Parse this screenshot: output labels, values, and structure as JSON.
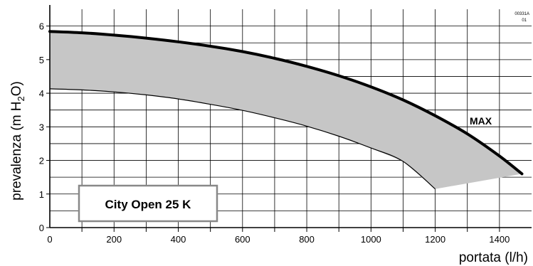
{
  "chart_data": {
    "type": "line",
    "title": "",
    "xlabel": "portata (l/h)",
    "ylabel_main": "prevalenza (m H",
    "ylabel_sub": "2",
    "ylabel_end": "O)",
    "xlim": [
      0,
      1500
    ],
    "ylim": [
      0,
      6.5
    ],
    "x_ticks": [
      0,
      200,
      400,
      600,
      800,
      1000,
      1200,
      1400
    ],
    "y_ticks": [
      0,
      1,
      2,
      3,
      4,
      5,
      6
    ],
    "x_minor_step": 100,
    "y_minor_step": 0.5,
    "grid": true,
    "series": [
      {
        "name": "MAX",
        "x": [
          0,
          100,
          200,
          300,
          400,
          500,
          600,
          700,
          800,
          900,
          1000,
          1100,
          1200,
          1300,
          1400,
          1470
        ],
        "y": [
          5.84,
          5.8,
          5.73,
          5.64,
          5.53,
          5.4,
          5.24,
          5.04,
          4.8,
          4.52,
          4.19,
          3.8,
          3.33,
          2.79,
          2.13,
          1.6
        ]
      },
      {
        "name": "",
        "x": [
          0,
          100,
          200,
          300,
          400,
          500,
          600,
          700,
          800,
          900,
          1000,
          1100,
          1200
        ],
        "y": [
          4.13,
          4.1,
          4.04,
          3.95,
          3.83,
          3.67,
          3.49,
          3.27,
          3.02,
          2.72,
          2.37,
          1.97,
          1.15
        ]
      }
    ],
    "band_fill": "#c6c6c6",
    "annotations": {
      "max_label": "MAX",
      "model_name": "City Open 25 K",
      "code_line1": "00331A",
      "code_line2": "01"
    }
  }
}
